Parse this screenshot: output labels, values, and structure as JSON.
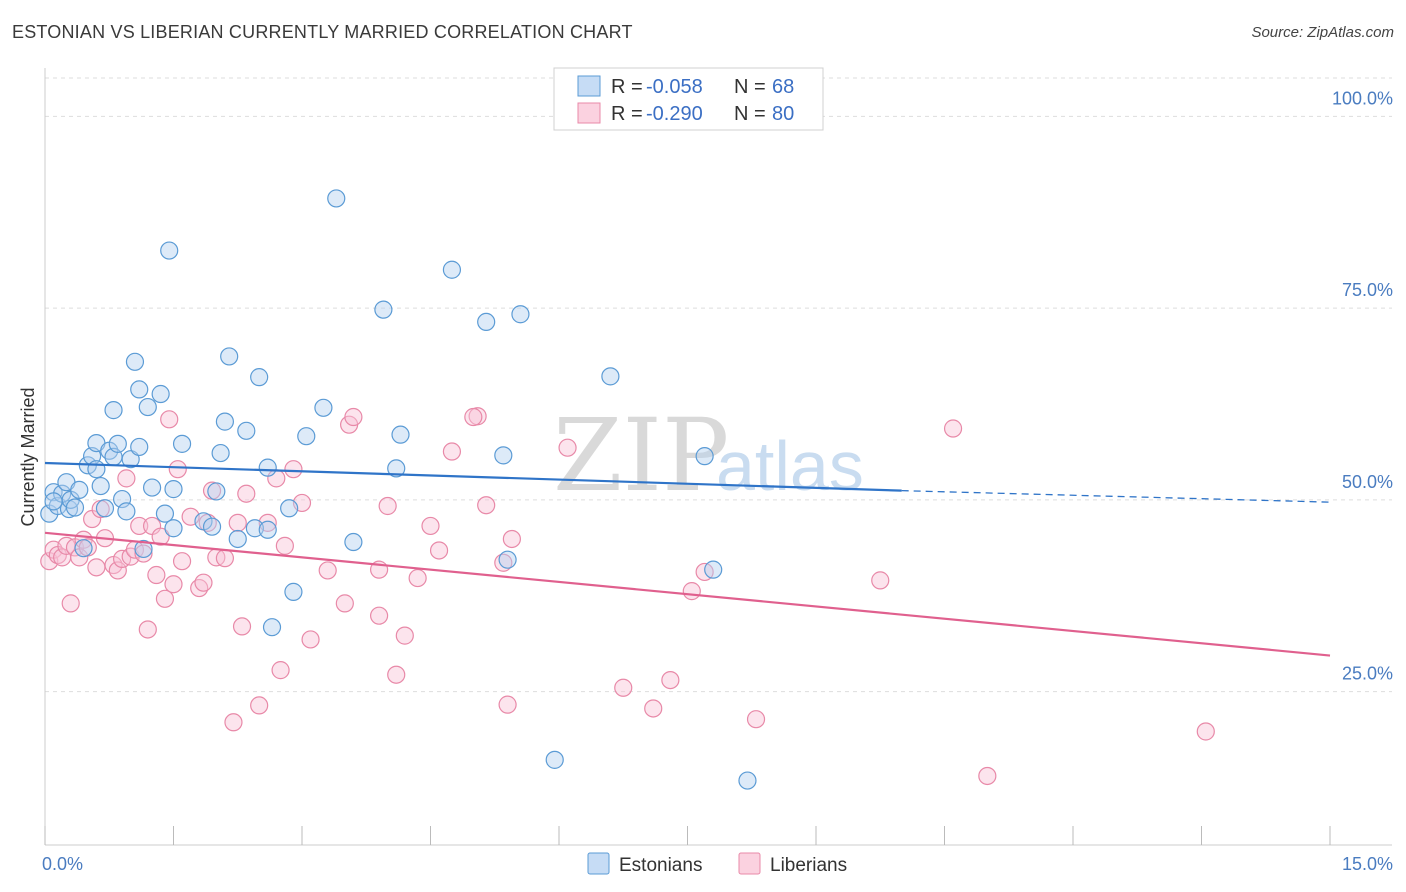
{
  "title": "ESTONIAN VS LIBERIAN CURRENTLY MARRIED CORRELATION CHART",
  "source": "Source: ZipAtlas.com",
  "watermark": {
    "zip": "ZIP",
    "atlas": "atlas"
  },
  "legend": {
    "rows": [
      {
        "r_label": "R = ",
        "r_value": "-0.058",
        "n_label": "N = ",
        "n_value": "68"
      },
      {
        "r_label": "R = ",
        "r_value": "-0.290",
        "n_label": "N = ",
        "n_value": "80"
      }
    ]
  },
  "bottom_legend": [
    "Estonians",
    "Liberians"
  ],
  "chart_data": {
    "type": "scatter",
    "title": "ESTONIAN VS LIBERIAN CURRENTLY MARRIED CORRELATION CHART",
    "xlabel": "",
    "ylabel": "Currently Married",
    "xlim": [
      0,
      15
    ],
    "ylim": [
      5,
      105
    ],
    "x_tick_labels": [
      "0.0%",
      "15.0%"
    ],
    "y_ticks": [
      25,
      50,
      75,
      100
    ],
    "y_tick_labels": [
      "25.0%",
      "50.0%",
      "75.0%",
      "100.0%"
    ],
    "colors": {
      "Estonians": "#5b9bd5",
      "Liberians": "#e889a8",
      "est_line": "#2f74c8",
      "lib_line": "#e0608e"
    },
    "series": [
      {
        "name": "Estonians",
        "r": -0.058,
        "n": 68,
        "trend": {
          "x0": 0.0,
          "y0": 54.8,
          "x1": 10.0,
          "y1": 51.2,
          "dash_to_x": 15.0,
          "dash_y1": 49.7
        },
        "points": [
          [
            0.05,
            48.2
          ],
          [
            0.1,
            51.0
          ],
          [
            0.15,
            49.2
          ],
          [
            0.2,
            50.8
          ],
          [
            0.25,
            52.3
          ],
          [
            0.28,
            48.8
          ],
          [
            0.3,
            50.0
          ],
          [
            0.35,
            49.0
          ],
          [
            0.4,
            51.3
          ],
          [
            0.45,
            43.7
          ],
          [
            0.5,
            54.5
          ],
          [
            0.55,
            55.7
          ],
          [
            0.6,
            57.4
          ],
          [
            0.65,
            51.8
          ],
          [
            0.7,
            48.9
          ],
          [
            0.75,
            56.4
          ],
          [
            0.8,
            55.6
          ],
          [
            0.8,
            61.7
          ],
          [
            0.85,
            57.3
          ],
          [
            0.9,
            50.1
          ],
          [
            0.95,
            48.5
          ],
          [
            1.0,
            55.3
          ],
          [
            1.05,
            68.0
          ],
          [
            1.1,
            56.9
          ],
          [
            1.15,
            43.6
          ],
          [
            1.1,
            64.4
          ],
          [
            1.2,
            62.1
          ],
          [
            1.25,
            51.6
          ],
          [
            1.35,
            63.8
          ],
          [
            1.4,
            48.2
          ],
          [
            1.45,
            82.5
          ],
          [
            1.5,
            46.3
          ],
          [
            1.5,
            51.4
          ],
          [
            1.6,
            57.3
          ],
          [
            1.85,
            47.2
          ],
          [
            1.95,
            46.5
          ],
          [
            2.0,
            51.1
          ],
          [
            2.05,
            56.1
          ],
          [
            2.1,
            60.2
          ],
          [
            2.15,
            68.7
          ],
          [
            2.25,
            44.9
          ],
          [
            2.35,
            59.0
          ],
          [
            2.45,
            46.3
          ],
          [
            2.5,
            66.0
          ],
          [
            2.6,
            46.1
          ],
          [
            2.6,
            54.2
          ],
          [
            2.65,
            33.4
          ],
          [
            2.85,
            48.9
          ],
          [
            2.9,
            38.0
          ],
          [
            3.05,
            58.3
          ],
          [
            3.25,
            62.0
          ],
          [
            3.4,
            89.3
          ],
          [
            3.6,
            44.5
          ],
          [
            3.95,
            74.8
          ],
          [
            4.1,
            54.1
          ],
          [
            4.15,
            58.5
          ],
          [
            4.75,
            80.0
          ],
          [
            5.15,
            73.2
          ],
          [
            5.35,
            55.8
          ],
          [
            5.4,
            42.2
          ],
          [
            5.55,
            74.2
          ],
          [
            5.95,
            16.1
          ],
          [
            6.6,
            66.1
          ],
          [
            7.7,
            55.7
          ],
          [
            7.8,
            40.9
          ],
          [
            8.2,
            13.4
          ],
          [
            0.1,
            49.8
          ],
          [
            0.6,
            54.0
          ]
        ]
      },
      {
        "name": "Liberians",
        "r": -0.29,
        "n": 80,
        "trend": {
          "x0": 0.0,
          "y0": 45.7,
          "x1": 15.0,
          "y1": 29.7
        },
        "points": [
          [
            0.05,
            42.0
          ],
          [
            0.1,
            43.5
          ],
          [
            0.15,
            42.8
          ],
          [
            0.2,
            42.5
          ],
          [
            0.25,
            44.0
          ],
          [
            0.3,
            36.5
          ],
          [
            0.35,
            43.8
          ],
          [
            0.4,
            42.5
          ],
          [
            0.45,
            44.8
          ],
          [
            0.5,
            43.8
          ],
          [
            0.55,
            47.5
          ],
          [
            0.6,
            41.2
          ],
          [
            0.65,
            48.8
          ],
          [
            0.7,
            45.0
          ],
          [
            0.8,
            41.5
          ],
          [
            0.85,
            40.8
          ],
          [
            0.9,
            42.3
          ],
          [
            0.95,
            52.8
          ],
          [
            1.0,
            42.6
          ],
          [
            1.05,
            43.5
          ],
          [
            1.1,
            46.6
          ],
          [
            1.15,
            43.0
          ],
          [
            1.2,
            33.1
          ],
          [
            1.25,
            46.6
          ],
          [
            1.3,
            40.2
          ],
          [
            1.35,
            45.2
          ],
          [
            1.4,
            37.1
          ],
          [
            1.45,
            60.5
          ],
          [
            1.5,
            39.0
          ],
          [
            1.55,
            54.0
          ],
          [
            1.6,
            42.0
          ],
          [
            1.7,
            47.8
          ],
          [
            1.8,
            38.5
          ],
          [
            1.85,
            39.2
          ],
          [
            1.9,
            47.0
          ],
          [
            1.95,
            51.2
          ],
          [
            2.0,
            42.5
          ],
          [
            2.1,
            42.4
          ],
          [
            2.2,
            21.0
          ],
          [
            2.25,
            47.0
          ],
          [
            2.3,
            33.5
          ],
          [
            2.35,
            50.8
          ],
          [
            2.5,
            23.2
          ],
          [
            2.6,
            47.0
          ],
          [
            2.7,
            52.8
          ],
          [
            2.75,
            27.8
          ],
          [
            2.8,
            44.0
          ],
          [
            2.9,
            54.0
          ],
          [
            3.0,
            49.6
          ],
          [
            3.1,
            31.8
          ],
          [
            3.3,
            40.8
          ],
          [
            3.5,
            36.5
          ],
          [
            3.55,
            59.8
          ],
          [
            3.6,
            60.8
          ],
          [
            3.9,
            34.9
          ],
          [
            3.9,
            40.9
          ],
          [
            4.0,
            49.2
          ],
          [
            4.1,
            27.2
          ],
          [
            4.2,
            32.3
          ],
          [
            4.35,
            39.8
          ],
          [
            4.5,
            46.6
          ],
          [
            4.6,
            43.4
          ],
          [
            4.75,
            56.3
          ],
          [
            5.05,
            60.9
          ],
          [
            5.15,
            49.3
          ],
          [
            5.35,
            41.8
          ],
          [
            5.4,
            23.3
          ],
          [
            5.45,
            44.9
          ],
          [
            6.1,
            56.8
          ],
          [
            6.75,
            25.5
          ],
          [
            7.1,
            22.8
          ],
          [
            7.3,
            26.5
          ],
          [
            7.55,
            38.1
          ],
          [
            7.7,
            40.6
          ],
          [
            8.3,
            21.4
          ],
          [
            9.75,
            39.5
          ],
          [
            10.6,
            59.3
          ],
          [
            11.0,
            14.0
          ],
          [
            13.55,
            19.8
          ],
          [
            5.0,
            60.8
          ]
        ]
      }
    ]
  }
}
